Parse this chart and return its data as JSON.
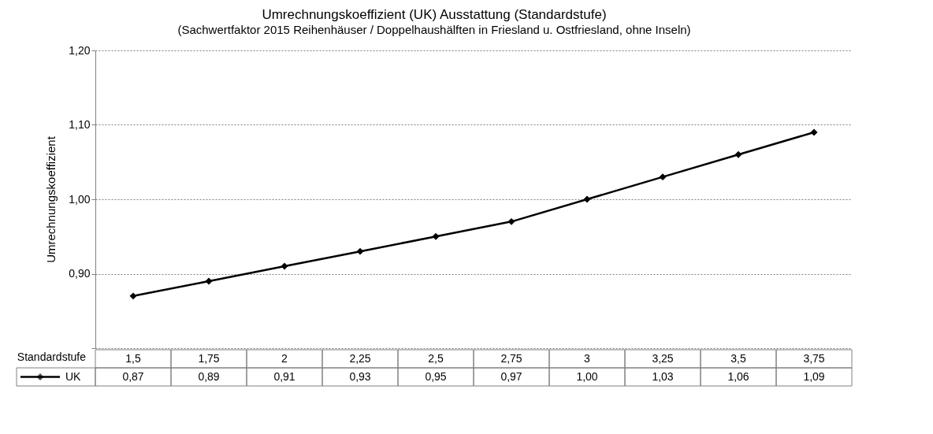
{
  "chart_data": {
    "type": "line",
    "title": "Umrechnungskoeffizient (UK)  Ausstattung (Standardstufe)",
    "subtitle": "(Sachwertfaktor 2015 Reihenhäuser / Doppelhaushälften in Friesland u. Ostfriesland, ohne Inseln)",
    "xlabel": "Standardstufe",
    "ylabel": "Umrechnungskoeffizient",
    "categories": [
      "1,5",
      "1,75",
      "2",
      "2,25",
      "2,5",
      "2,75",
      "3",
      "3,25",
      "3,5",
      "3,75"
    ],
    "series": [
      {
        "name": "UK",
        "color": "#000000",
        "values": [
          0.87,
          0.89,
          0.91,
          0.93,
          0.95,
          0.97,
          1.0,
          1.03,
          1.06,
          1.09
        ],
        "value_labels": [
          "0,87",
          "0,89",
          "0,91",
          "0,93",
          "0,95",
          "0,97",
          "1,00",
          "1,03",
          "1,06",
          "1,09"
        ]
      }
    ],
    "ylim": [
      0.8,
      1.2
    ],
    "yticks": [
      {
        "value": 0.8,
        "label": null
      },
      {
        "value": 0.9,
        "label": "0,90"
      },
      {
        "value": 1.0,
        "label": "1,00"
      },
      {
        "value": 1.1,
        "label": "1,10"
      },
      {
        "value": 1.2,
        "label": "1,20"
      }
    ],
    "grid": "y",
    "marker": "diamond",
    "line_style": "solid"
  }
}
